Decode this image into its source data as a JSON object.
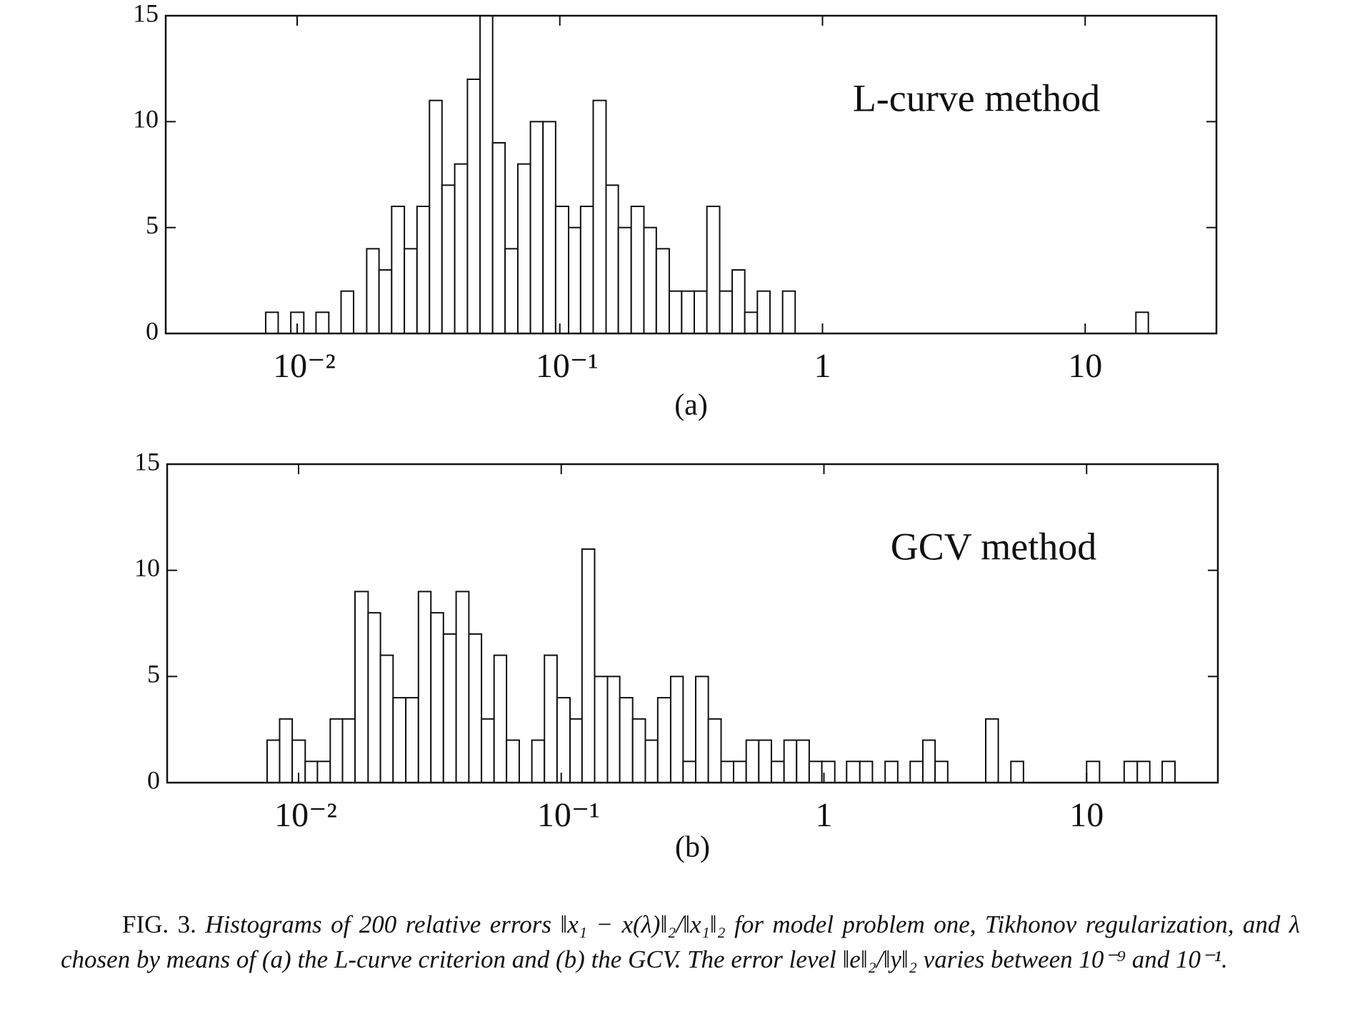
{
  "chart_data": [
    {
      "type": "histogram",
      "annotation": "L-curve method",
      "panel_label": "(a)",
      "xscale": "log",
      "xlim": [
        0.00316,
        31.6
      ],
      "xticks": [
        {
          "value": 0.01,
          "label": "10⁻²"
        },
        {
          "value": 0.1,
          "label": "10⁻¹"
        },
        1,
        10
      ],
      "ylim": [
        0,
        15
      ],
      "yticks": [
        0,
        5,
        10,
        15
      ],
      "color": "#ffffff",
      "bins": [
        0.00759,
        0.00847,
        0.00946,
        0.0106,
        0.0118,
        0.0132,
        0.0147,
        0.0164,
        0.0184,
        0.0205,
        0.0229,
        0.0256,
        0.0286,
        0.0319,
        0.0356,
        0.0398,
        0.0445,
        0.0497,
        0.0555,
        0.0619,
        0.0692,
        0.0773,
        0.0863,
        0.0964,
        0.108,
        0.12,
        0.134,
        0.15,
        0.167,
        0.187,
        0.209,
        0.233,
        0.261,
        0.291,
        0.325,
        0.363,
        0.406,
        0.453,
        0.506,
        0.565,
        0.631,
        0.705,
        0.787,
        0.879,
        0.982,
        1.1,
        1.22,
        1.37,
        1.53,
        1.71,
        1.91,
        2.13,
        2.38,
        2.65,
        2.96,
        3.31,
        3.7,
        4.13,
        4.61,
        5.15,
        5.75,
        6.43,
        7.18,
        8.02,
        8.95,
        10,
        11.2,
        12.5,
        13.9,
        15.6,
        17.4,
        19.4,
        21.7
      ],
      "values": [
        1,
        0,
        1,
        0,
        1,
        0,
        2,
        0,
        4,
        3,
        6,
        4,
        6,
        11,
        7,
        8,
        12,
        15,
        9,
        4,
        8,
        10,
        10,
        6,
        5,
        6,
        11,
        7,
        5,
        6,
        5,
        4,
        2,
        2,
        2,
        6,
        2,
        3,
        1,
        2,
        0,
        2,
        0,
        0,
        0,
        0,
        0,
        0,
        0,
        0,
        0,
        0,
        0,
        0,
        0,
        0,
        0,
        0,
        0,
        0,
        0,
        0,
        0,
        0,
        0,
        0,
        0,
        0,
        0,
        1,
        0,
        0
      ]
    },
    {
      "type": "histogram",
      "annotation": "GCV method",
      "panel_label": "(b)",
      "xscale": "log",
      "xlim": [
        0.00316,
        31.6
      ],
      "xticks": [
        {
          "value": 0.01,
          "label": "10⁻²"
        },
        {
          "value": 0.1,
          "label": "10⁻¹"
        },
        1,
        10
      ],
      "ylim": [
        0,
        15
      ],
      "yticks": [
        0,
        5,
        10,
        15
      ],
      "color": "#ffffff",
      "bins": [
        0.00759,
        0.00847,
        0.00946,
        0.0106,
        0.0118,
        0.0132,
        0.0147,
        0.0164,
        0.0184,
        0.0205,
        0.0229,
        0.0256,
        0.0286,
        0.0319,
        0.0356,
        0.0398,
        0.0445,
        0.0497,
        0.0555,
        0.0619,
        0.0692,
        0.0773,
        0.0863,
        0.0964,
        0.108,
        0.12,
        0.134,
        0.15,
        0.167,
        0.187,
        0.209,
        0.233,
        0.261,
        0.291,
        0.325,
        0.363,
        0.406,
        0.453,
        0.506,
        0.565,
        0.631,
        0.705,
        0.787,
        0.879,
        0.982,
        1.1,
        1.22,
        1.37,
        1.53,
        1.71,
        1.91,
        2.13,
        2.38,
        2.65,
        2.96,
        3.31,
        3.7,
        4.13,
        4.61,
        5.15,
        5.75,
        6.43,
        7.18,
        8.02,
        8.95,
        10,
        11.2,
        12.5,
        13.9,
        15.6,
        17.4,
        19.4,
        21.7
      ],
      "values": [
        2,
        3,
        2,
        1,
        1,
        3,
        3,
        9,
        8,
        6,
        4,
        4,
        9,
        8,
        7,
        9,
        7,
        3,
        6,
        2,
        0,
        2,
        6,
        4,
        3,
        11,
        5,
        5,
        4,
        3,
        2,
        4,
        5,
        1,
        5,
        3,
        1,
        1,
        2,
        2,
        1,
        2,
        2,
        1,
        1,
        0,
        1,
        1,
        0,
        1,
        0,
        1,
        2,
        1,
        0,
        0,
        0,
        3,
        0,
        1,
        0,
        0,
        0,
        0,
        0,
        1,
        0,
        0,
        1,
        1,
        0,
        1
      ]
    }
  ],
  "caption": {
    "label": "FIG. 3.",
    "text": "Histograms of 200 relative errors ‖x₁ − x(λ)‖₂/‖x₁‖₂ for model problem one, Tikhonov regularization, and λ chosen by means of (a) the L-curve criterion and (b) the GCV. The error level ‖e‖₂/‖y‖₂ varies between 10⁻⁹ and 10⁻¹."
  }
}
